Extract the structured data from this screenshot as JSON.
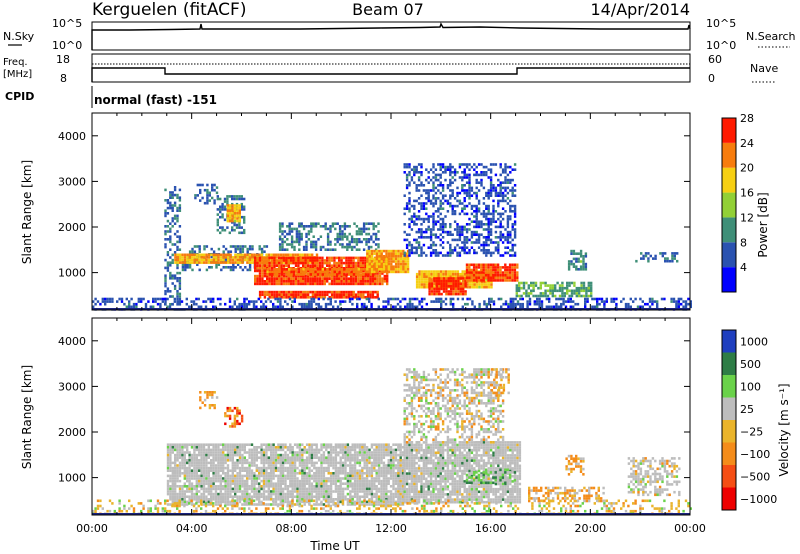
{
  "header": {
    "station": "Kerguelen (fitACF)",
    "beam": "Beam 07",
    "date": "14/Apr/2014"
  },
  "noise_panel": {
    "left_label": "N.Sky",
    "left_ticks": [
      "10^5",
      "10^0"
    ],
    "right_label": "N.Search",
    "right_ticks": [
      "10^5",
      "10^0"
    ]
  },
  "freq_panel": {
    "left_label_line1": "Freq.",
    "left_label_line2": "[MHz]",
    "left_ticks": [
      "18",
      "8"
    ],
    "right_label": "Nave",
    "right_ticks": [
      "60",
      "0"
    ]
  },
  "cpid": {
    "label": "CPID",
    "value": "normal (fast) -151"
  },
  "time_axis": {
    "title": "Time UT",
    "ticks": [
      "00:00",
      "04:00",
      "08:00",
      "12:00",
      "16:00",
      "20:00",
      "00:00"
    ]
  },
  "power_colorbar": {
    "title": "Power [dB]",
    "ticks": [
      "4",
      "8",
      "12",
      "16",
      "20",
      "24",
      "28"
    ],
    "colors": [
      "#0000ff",
      "#2a52b0",
      "#3f8f78",
      "#92d036",
      "#f6cf12",
      "#f77c0d",
      "#ff1a00"
    ]
  },
  "velocity_colorbar": {
    "title": "Velocity [m s⁻¹]",
    "ticks": [
      "1000",
      "500",
      "100",
      "25",
      "−25",
      "−100",
      "−500",
      "−1000"
    ],
    "colors": [
      "#1f3fbf",
      "#2e7d46",
      "#6ad24a",
      "#bdbdbd",
      "#eab42b",
      "#f48c1a",
      "#f54e14",
      "#ee0000"
    ]
  },
  "chart_data": [
    {
      "type": "heatmap",
      "title": "Power",
      "ylabel": "Slant Range [km]",
      "xlabel": "Time UT",
      "y_ticks": [
        1000,
        2000,
        3000,
        4000
      ],
      "ylim": [
        180,
        4500
      ],
      "xlim": [
        0,
        24
      ],
      "colorbar_label": "Power [dB]",
      "colorbar_range": [
        0,
        30
      ],
      "regions": [
        {
          "t0": 2.9,
          "t1": 3.5,
          "r0": 300,
          "r1": 2900,
          "level": 8
        },
        {
          "t0": 3.6,
          "t1": 7.0,
          "r0": 1050,
          "r1": 1600,
          "level": 8
        },
        {
          "t0": 4.1,
          "t1": 5.0,
          "r0": 2550,
          "r1": 2950,
          "level": 8
        },
        {
          "t0": 5.0,
          "t1": 6.1,
          "r0": 1900,
          "r1": 2700,
          "level": 9
        },
        {
          "t0": 5.4,
          "t1": 5.9,
          "r0": 2150,
          "r1": 2500,
          "level": 20
        },
        {
          "t0": 3.3,
          "t1": 9.0,
          "r0": 1200,
          "r1": 1420,
          "level": 22
        },
        {
          "t0": 6.5,
          "t1": 11.8,
          "r0": 750,
          "r1": 1350,
          "level": 26
        },
        {
          "t0": 6.7,
          "t1": 11.5,
          "r0": 450,
          "r1": 600,
          "level": 27
        },
        {
          "t0": 7.0,
          "t1": 11.3,
          "r0": 950,
          "r1": 1100,
          "level": 24
        },
        {
          "t0": 7.5,
          "t1": 11.5,
          "r0": 1500,
          "r1": 2100,
          "level": 9
        },
        {
          "t0": 11.0,
          "t1": 12.7,
          "r0": 1000,
          "r1": 1500,
          "level": 22
        },
        {
          "t0": 12.5,
          "t1": 17.0,
          "r0": 1350,
          "r1": 3400,
          "level": 6
        },
        {
          "t0": 13.0,
          "t1": 16.0,
          "r0": 700,
          "r1": 1050,
          "level": 20
        },
        {
          "t0": 13.5,
          "t1": 15.0,
          "r0": 550,
          "r1": 900,
          "level": 27
        },
        {
          "t0": 15.0,
          "t1": 17.1,
          "r0": 850,
          "r1": 1200,
          "level": 26
        },
        {
          "t0": 17.0,
          "t1": 20.0,
          "r0": 500,
          "r1": 800,
          "level": 12
        },
        {
          "t0": 19.1,
          "t1": 19.8,
          "r0": 1100,
          "r1": 1500,
          "level": 10
        },
        {
          "t0": 21.8,
          "t1": 23.5,
          "r0": 1250,
          "r1": 1450,
          "level": 8
        },
        {
          "t0": 0.0,
          "t1": 24.0,
          "r0": 200,
          "r1": 450,
          "level": 6
        }
      ]
    },
    {
      "type": "heatmap",
      "title": "Velocity",
      "ylabel": "Slant Range [km]",
      "xlabel": "Time UT",
      "y_ticks": [
        1000,
        2000,
        3000,
        4000
      ],
      "ylim": [
        180,
        4500
      ],
      "xlim": [
        0,
        24
      ],
      "colorbar_label": "Velocity [m s⁻¹]",
      "regions": [
        {
          "t0": 3.0,
          "t1": 12.5,
          "r0": 400,
          "r1": 1750,
          "class": "ground"
        },
        {
          "t0": 12.5,
          "t1": 17.2,
          "r0": 450,
          "r1": 1800,
          "class": "ground"
        },
        {
          "t0": 12.5,
          "t1": 16.5,
          "r0": 1800,
          "r1": 3400,
          "class": "low"
        },
        {
          "t0": 4.3,
          "t1": 5.0,
          "r0": 2550,
          "r1": 2900,
          "class": "negative"
        },
        {
          "t0": 5.3,
          "t1": 6.0,
          "r0": 2150,
          "r1": 2550,
          "class": "strong_negative"
        },
        {
          "t0": 15.0,
          "t1": 17.0,
          "r0": 900,
          "r1": 1200,
          "class": "positive"
        },
        {
          "t0": 16.0,
          "t1": 16.7,
          "r0": 2800,
          "r1": 3400,
          "class": "negative"
        },
        {
          "t0": 17.5,
          "t1": 20.5,
          "r0": 500,
          "r1": 800,
          "class": "negative"
        },
        {
          "t0": 19.0,
          "t1": 19.7,
          "r0": 1050,
          "r1": 1500,
          "class": "negative"
        },
        {
          "t0": 21.5,
          "t1": 23.6,
          "r0": 600,
          "r1": 1450,
          "class": "low"
        },
        {
          "t0": 0.0,
          "t1": 24.0,
          "r0": 200,
          "r1": 520,
          "class": "noise"
        }
      ]
    }
  ]
}
